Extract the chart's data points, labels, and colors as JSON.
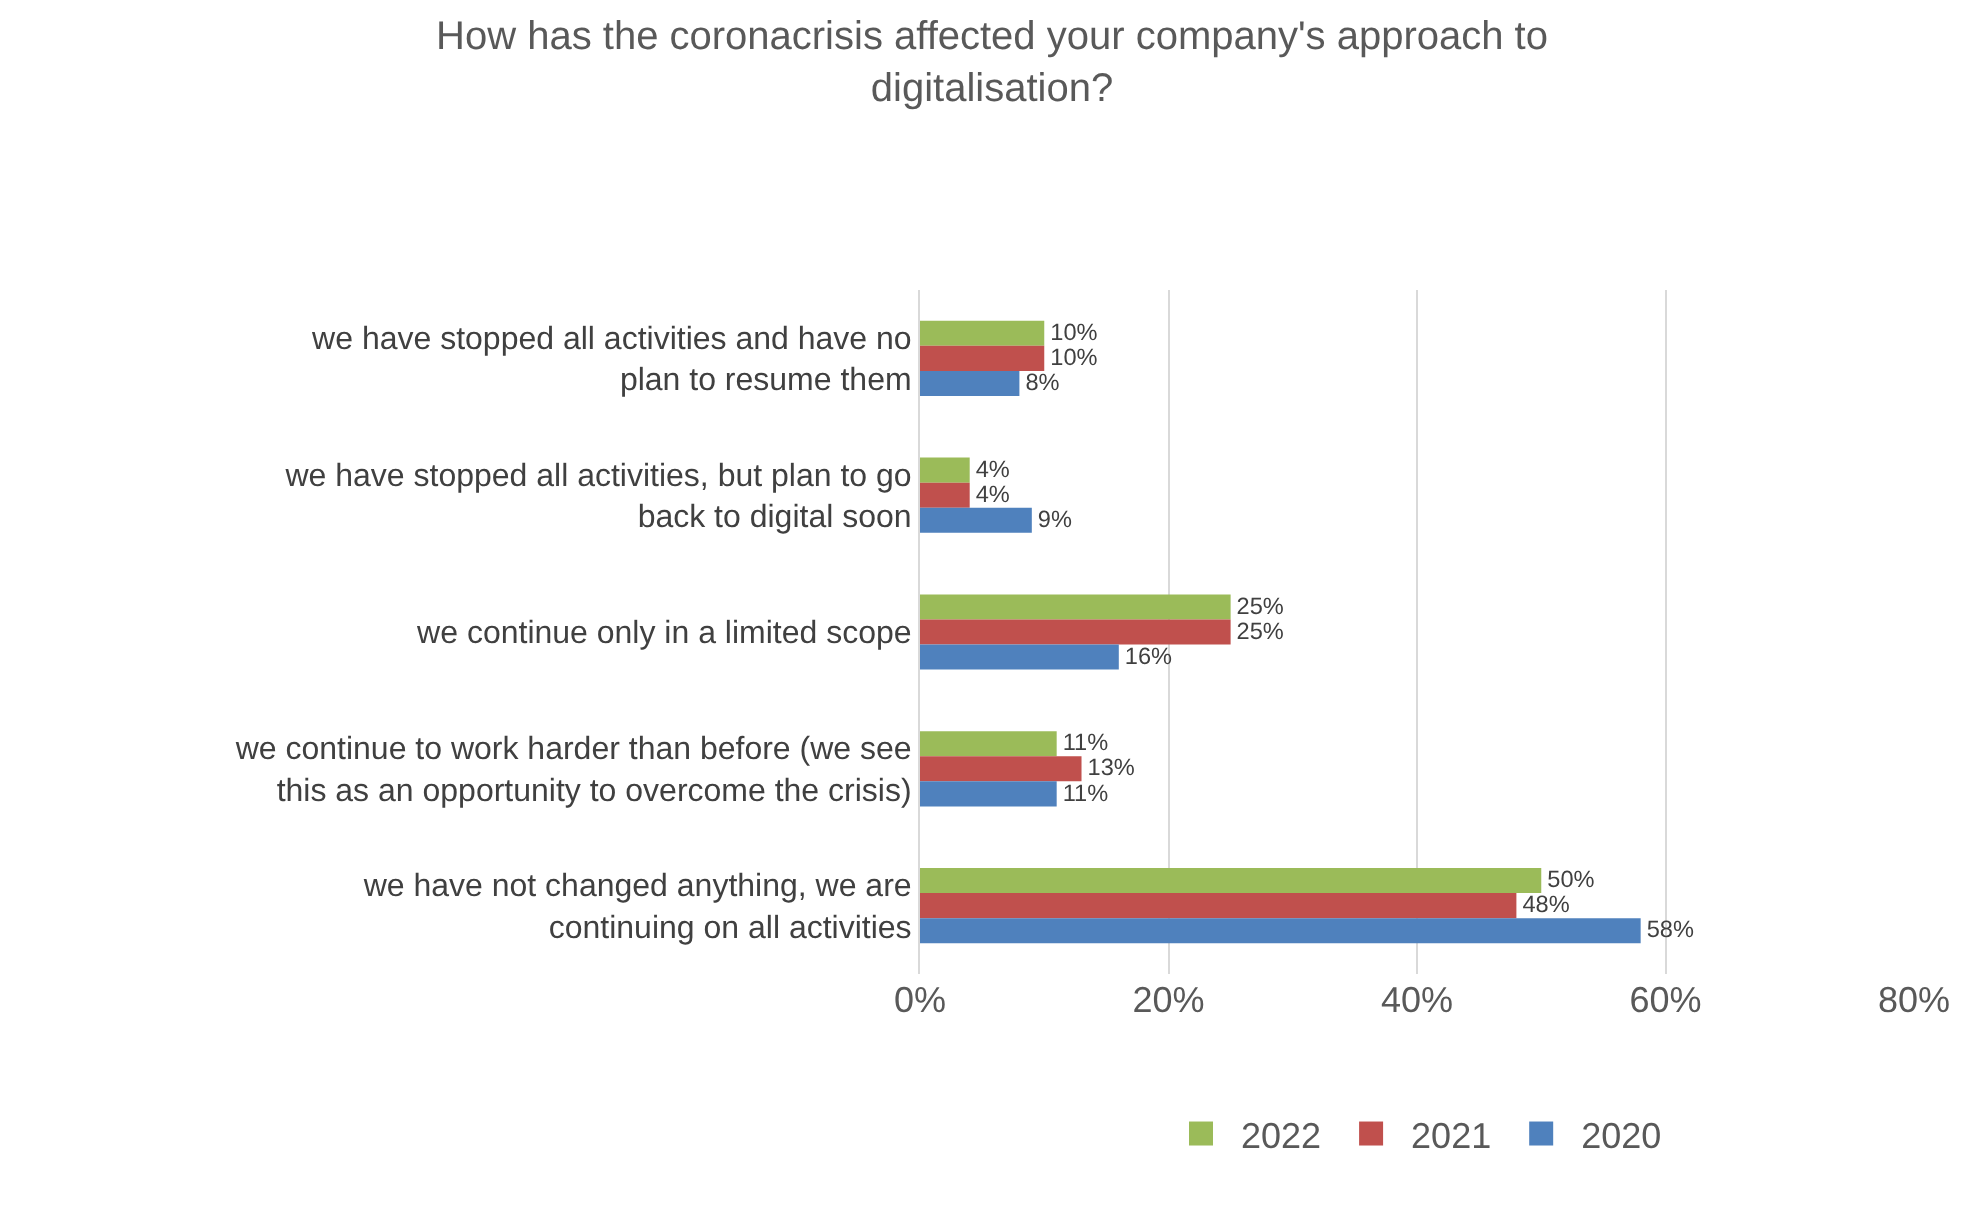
{
  "chart_data": {
    "type": "bar",
    "orientation": "horizontal",
    "title": "How has the coronacrisis affected your company's approach to digitalisation?",
    "categories": [
      "we have stopped all activities and have no plan to resume them",
      "we have stopped all activities, but plan to go back to digital soon",
      "we continue only in a limited scope",
      "we continue to work harder than before (we see this as an opportunity to overcome the crisis)",
      "we have not changed anything, we are continuing on all activities"
    ],
    "series": [
      {
        "name": "2022",
        "color": "#9bbb59",
        "values": [
          10,
          4,
          25,
          11,
          50
        ],
        "value_labels": [
          "10%",
          "4%",
          "25%",
          "11%",
          "50%"
        ]
      },
      {
        "name": "2021",
        "color": "#c0504d",
        "values": [
          10,
          4,
          25,
          13,
          48
        ],
        "value_labels": [
          "10%",
          "4%",
          "25%",
          "13%",
          "48%"
        ]
      },
      {
        "name": "2020",
        "color": "#4f81bd",
        "values": [
          8,
          9,
          16,
          11,
          58
        ],
        "value_labels": [
          "8%",
          "9%",
          "16%",
          "11%",
          "58%"
        ]
      }
    ],
    "xlim": [
      0,
      80
    ],
    "xticks": [
      {
        "value": 0,
        "label": "0%"
      },
      {
        "value": 20,
        "label": "20%"
      },
      {
        "value": 40,
        "label": "40%"
      },
      {
        "value": 60,
        "label": "60%"
      },
      {
        "value": 80,
        "label": "80%"
      }
    ],
    "grid": "x",
    "legend": "bottom"
  }
}
